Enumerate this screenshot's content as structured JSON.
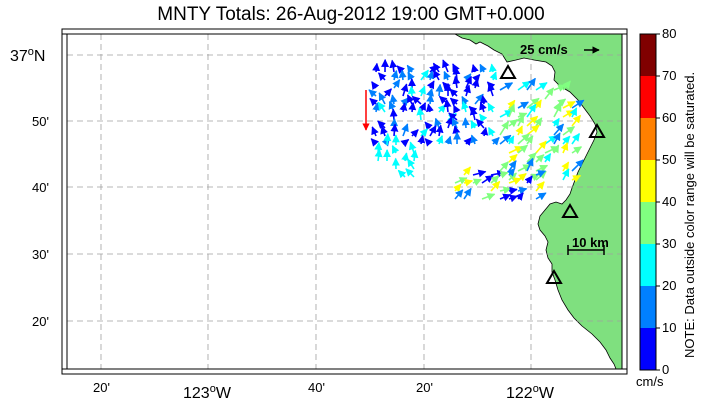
{
  "title": "MNTY Totals: 26-Aug-2012 19:00 GMT+0.000",
  "lat_labels": [
    {
      "text": "37",
      "sup": "o",
      "suffix": "N"
    },
    {
      "text": "50'"
    },
    {
      "text": "40'"
    },
    {
      "text": "30'"
    },
    {
      "text": "20'"
    }
  ],
  "lon_labels": [
    {
      "text": "20'"
    },
    {
      "text": "123",
      "sup": "o",
      "suffix": "W"
    },
    {
      "text": "40'"
    },
    {
      "text": "20'"
    },
    {
      "text": "122",
      "sup": "o",
      "suffix": "W"
    }
  ],
  "reference_vector_label": "25 cm/s",
  "scale_bar_label": "10 km",
  "colorbar": {
    "tick_labels": [
      "0",
      "10",
      "20",
      "30",
      "40",
      "50",
      "60",
      "70",
      "80"
    ],
    "unit": "cm/s",
    "note": "NOTE: Data outside color range will be saturated.",
    "colors": [
      "#0000ff",
      "#0080ff",
      "#00ffff",
      "#80ff80",
      "#ffff00",
      "#ff8000",
      "#ff0000",
      "#800000"
    ]
  },
  "colors": {
    "land": "#7fe07f",
    "water": "#ffffff",
    "grid": "#a0a0a0",
    "station_marker": "#000000",
    "outlier_vector": "#ff0000"
  },
  "stations": [
    "station-1",
    "station-2",
    "station-3",
    "station-4"
  ]
}
